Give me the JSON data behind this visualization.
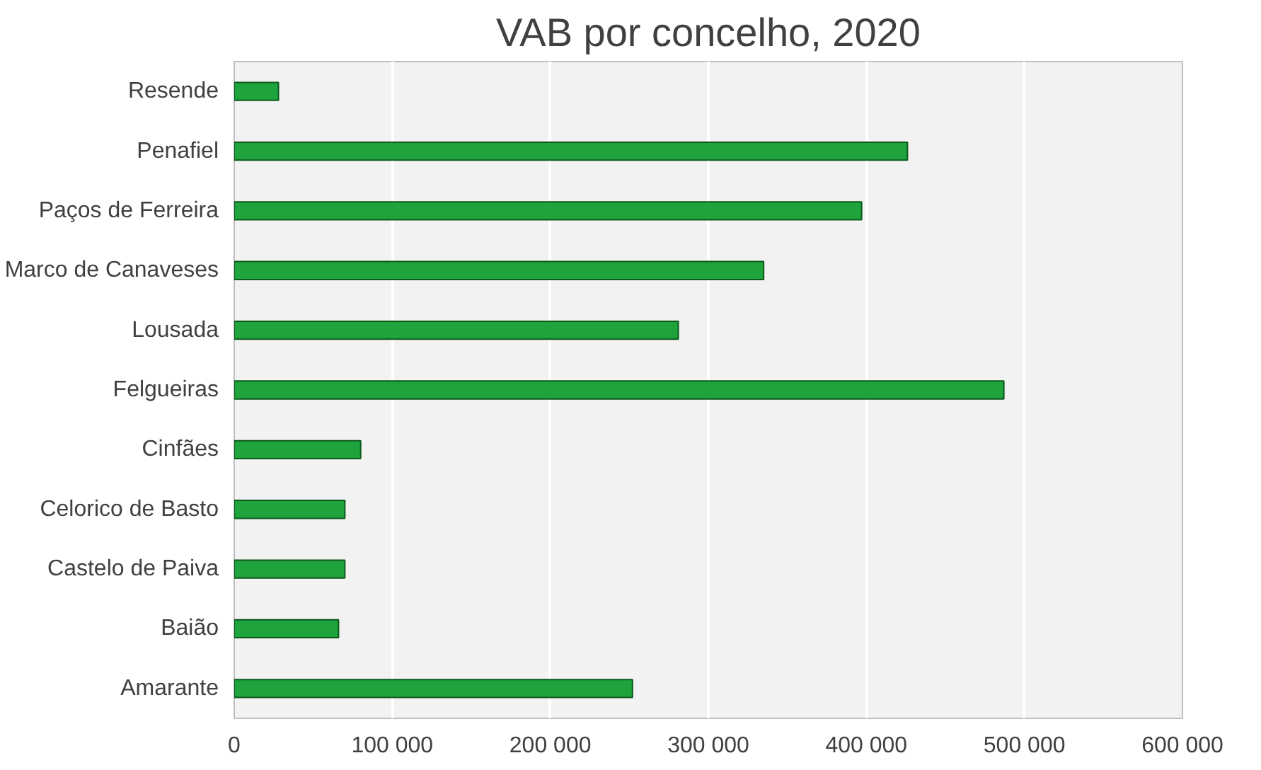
{
  "chart_data": {
    "type": "bar",
    "orientation": "horizontal",
    "title": "VAB por concelho, 2020",
    "categories": [
      "Resende",
      "Penafiel",
      "Paços de Ferreira",
      "Marco de Canaveses",
      "Lousada",
      "Felgueiras",
      "Cinfães",
      "Celorico de Basto",
      "Castelo de Paiva",
      "Baião",
      "Amarante"
    ],
    "values": [
      28000,
      426000,
      397000,
      335000,
      281000,
      487000,
      80000,
      70000,
      70000,
      66000,
      252000
    ],
    "color": "#1fa33c",
    "xlim": [
      0,
      600000
    ],
    "xticks": [
      0,
      {
        "value": 100000,
        "label": "100 000"
      },
      {
        "value": 200000,
        "label": "200 000"
      },
      {
        "value": 300000,
        "label": "300 000"
      },
      {
        "value": 400000,
        "label": "400 000"
      },
      {
        "value": 500000,
        "label": "500 000"
      },
      {
        "value": 600000,
        "label": "600 000"
      }
    ],
    "grid": "x"
  }
}
